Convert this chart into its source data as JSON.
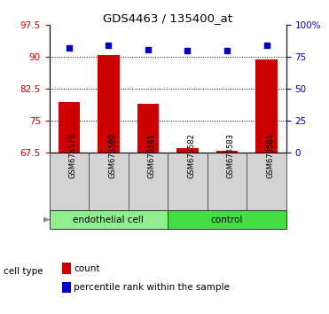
{
  "title": "GDS4463 / 135400_at",
  "samples": [
    "GSM673579",
    "GSM673580",
    "GSM673581",
    "GSM673582",
    "GSM673583",
    "GSM673584"
  ],
  "bar_values": [
    79.5,
    90.5,
    79.0,
    68.5,
    68.0,
    89.5
  ],
  "percentile_values": [
    82,
    84,
    81,
    80,
    80,
    84
  ],
  "ylim_left": [
    67.5,
    97.5
  ],
  "ylim_right": [
    0,
    100
  ],
  "yticks_left": [
    67.5,
    75.0,
    82.5,
    90.0,
    97.5
  ],
  "yticks_right": [
    0,
    25,
    50,
    75,
    100
  ],
  "ytick_labels_left": [
    "67.5",
    "75",
    "82.5",
    "90",
    "97.5"
  ],
  "ytick_labels_right": [
    "0",
    "25",
    "50",
    "75",
    "100%"
  ],
  "hlines": [
    75.0,
    82.5,
    90.0
  ],
  "bar_color": "#cc0000",
  "percentile_color": "#0000cc",
  "groups": [
    {
      "label": "endothelial cell",
      "indices": [
        0,
        1,
        2
      ],
      "color": "#90ee90"
    },
    {
      "label": "control",
      "indices": [
        3,
        4,
        5
      ],
      "color": "#44dd44"
    }
  ],
  "cell_type_label": "cell type",
  "legend_count_label": "count",
  "legend_percentile_label": "percentile rank within the sample",
  "bar_width": 0.55,
  "plot_bg": "#ffffff",
  "tick_label_color_left": "#cc0000",
  "tick_label_color_right": "#0000cc",
  "spine_color": "#000000",
  "label_bg_color": "#d3d3d3",
  "label_edge_color": "#555555"
}
